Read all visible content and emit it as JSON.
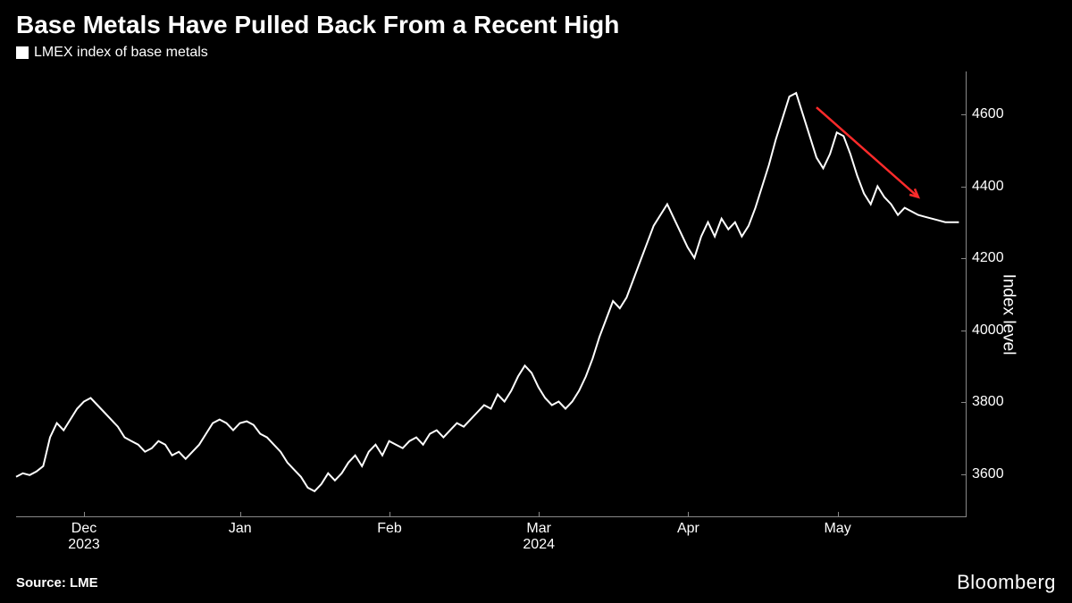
{
  "title": "Base Metals Have Pulled Back From a Recent High",
  "legend": {
    "marker_color": "#ffffff",
    "label": "LMEX index of base metals"
  },
  "source": "Source: LME",
  "brand": "Bloomberg",
  "chart": {
    "type": "line",
    "background_color": "#000000",
    "line_color": "#ffffff",
    "line_width": 2,
    "axis_color": "#888888",
    "ylabel": "Index level",
    "ylim": [
      3480,
      4720
    ],
    "yticks": [
      3600,
      3800,
      4000,
      4200,
      4400,
      4600
    ],
    "xlim": [
      0,
      140
    ],
    "xticks": [
      {
        "pos": 10,
        "label": "Dec",
        "year": "2023"
      },
      {
        "pos": 33,
        "label": "Jan"
      },
      {
        "pos": 55,
        "label": "Feb"
      },
      {
        "pos": 77,
        "label": "Mar",
        "year": "2024"
      },
      {
        "pos": 99,
        "label": "Apr"
      },
      {
        "pos": 121,
        "label": "May"
      }
    ],
    "series": [
      3590,
      3600,
      3595,
      3605,
      3620,
      3700,
      3740,
      3720,
      3750,
      3780,
      3800,
      3810,
      3790,
      3770,
      3750,
      3730,
      3700,
      3690,
      3680,
      3660,
      3670,
      3690,
      3680,
      3650,
      3660,
      3640,
      3660,
      3680,
      3710,
      3740,
      3750,
      3740,
      3720,
      3740,
      3745,
      3735,
      3710,
      3700,
      3680,
      3660,
      3630,
      3610,
      3590,
      3560,
      3550,
      3570,
      3600,
      3580,
      3600,
      3630,
      3650,
      3620,
      3660,
      3680,
      3650,
      3690,
      3680,
      3670,
      3690,
      3700,
      3680,
      3710,
      3720,
      3700,
      3720,
      3740,
      3730,
      3750,
      3770,
      3790,
      3780,
      3820,
      3800,
      3830,
      3870,
      3900,
      3880,
      3840,
      3810,
      3790,
      3800,
      3780,
      3800,
      3830,
      3870,
      3920,
      3980,
      4030,
      4080,
      4060,
      4090,
      4140,
      4190,
      4240,
      4290,
      4320,
      4350,
      4310,
      4270,
      4230,
      4200,
      4260,
      4300,
      4260,
      4310,
      4280,
      4300,
      4260,
      4290,
      4340,
      4400,
      4460,
      4530,
      4590,
      4650,
      4660,
      4600,
      4540,
      4480,
      4450,
      4490,
      4550,
      4540,
      4490,
      4430,
      4380,
      4350,
      4400,
      4370,
      4350,
      4320,
      4340,
      4330,
      4320,
      4315,
      4310,
      4305,
      4300,
      4300,
      4300
    ],
    "arrow": {
      "color": "#ff2b2b",
      "width": 2.5,
      "from_x": 118,
      "from_y": 4620,
      "to_x": 133,
      "to_y": 4370
    }
  }
}
